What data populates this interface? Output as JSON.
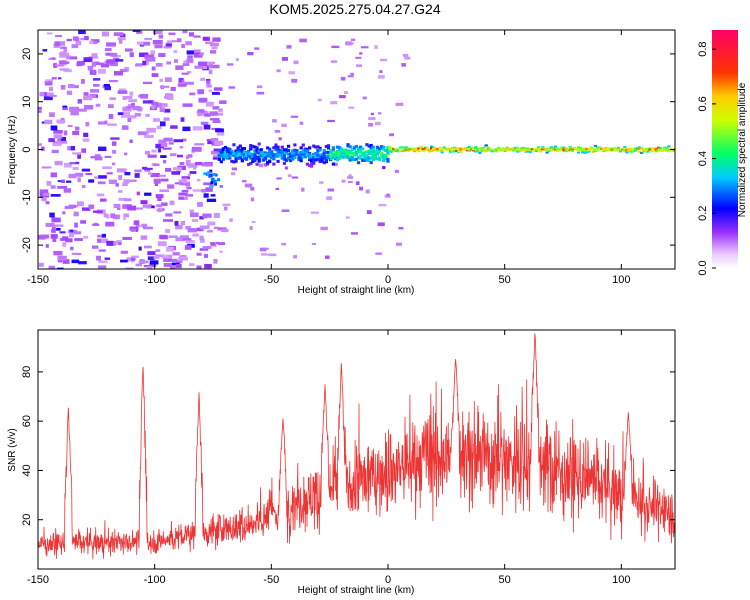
{
  "title": "KOM5.2025.275.04.27.G24",
  "colors": {
    "snr_line": "#ee3333",
    "frame": "#000000"
  },
  "chart_data": [
    {
      "type": "heatmap",
      "xlabel": "Height of straight line (km)",
      "ylabel": "Frequency (Hz)",
      "xlim": [
        -150,
        123
      ],
      "ylim": [
        -25,
        25
      ],
      "x_ticks": [
        -150,
        -100,
        -50,
        0,
        50,
        100
      ],
      "y_ticks": [
        -20,
        -10,
        0,
        10,
        20
      ],
      "x_tick_labels": [
        "-150",
        "-100",
        "-50",
        "0",
        "50",
        "100"
      ],
      "y_tick_labels": [
        "-20",
        "-10",
        "0",
        "10",
        "20"
      ],
      "colorbar": {
        "label": "Normalized spectral amplitude",
        "range": [
          0,
          0.87
        ],
        "ticks": [
          0.0,
          0.2,
          0.4,
          0.6,
          0.8
        ],
        "tick_labels": [
          "0.0",
          "0.2",
          "0.4",
          "0.6",
          "0.8"
        ]
      },
      "features": [
        {
          "x_range": [
            -150,
            -73
          ],
          "y_range": [
            -25,
            25
          ],
          "level": 0.1,
          "note": "scattered"
        },
        {
          "x_range": [
            -73,
            -25
          ],
          "y_center": -1,
          "level": 0.3
        },
        {
          "x_range": [
            -25,
            0
          ],
          "y_center": -1,
          "level": 0.4
        },
        {
          "x_range": [
            0,
            123
          ],
          "y_center": 0,
          "level": 0.6
        }
      ]
    },
    {
      "type": "line",
      "xlabel": "Height of straight line (km)",
      "ylabel": "SNR (v/v)",
      "xlim": [
        -150,
        123
      ],
      "ylim": [
        0,
        97
      ],
      "x_ticks": [
        -150,
        -100,
        -50,
        0,
        50,
        100
      ],
      "y_ticks": [
        20,
        40,
        60,
        80
      ],
      "x_tick_labels": [
        "-150",
        "-100",
        "-50",
        "0",
        "50",
        "100"
      ],
      "y_tick_labels": [
        "20",
        "40",
        "60",
        "80"
      ],
      "baseline": [
        [
          -150,
          10
        ],
        [
          -100,
          11
        ],
        [
          -60,
          18
        ],
        [
          -40,
          27
        ],
        [
          -20,
          33
        ],
        [
          0,
          40
        ],
        [
          20,
          45
        ],
        [
          40,
          46
        ],
        [
          60,
          43
        ],
        [
          80,
          37
        ],
        [
          100,
          30
        ],
        [
          123,
          22
        ]
      ],
      "peaks": [
        {
          "x": -137,
          "y": 67
        },
        {
          "x": -105,
          "y": 84
        },
        {
          "x": -81,
          "y": 72
        },
        {
          "x": -45,
          "y": 62
        },
        {
          "x": -27,
          "y": 75
        },
        {
          "x": -20,
          "y": 84
        },
        {
          "x": 29,
          "y": 86
        },
        {
          "x": 63,
          "y": 97
        },
        {
          "x": 103,
          "y": 64
        }
      ]
    }
  ]
}
